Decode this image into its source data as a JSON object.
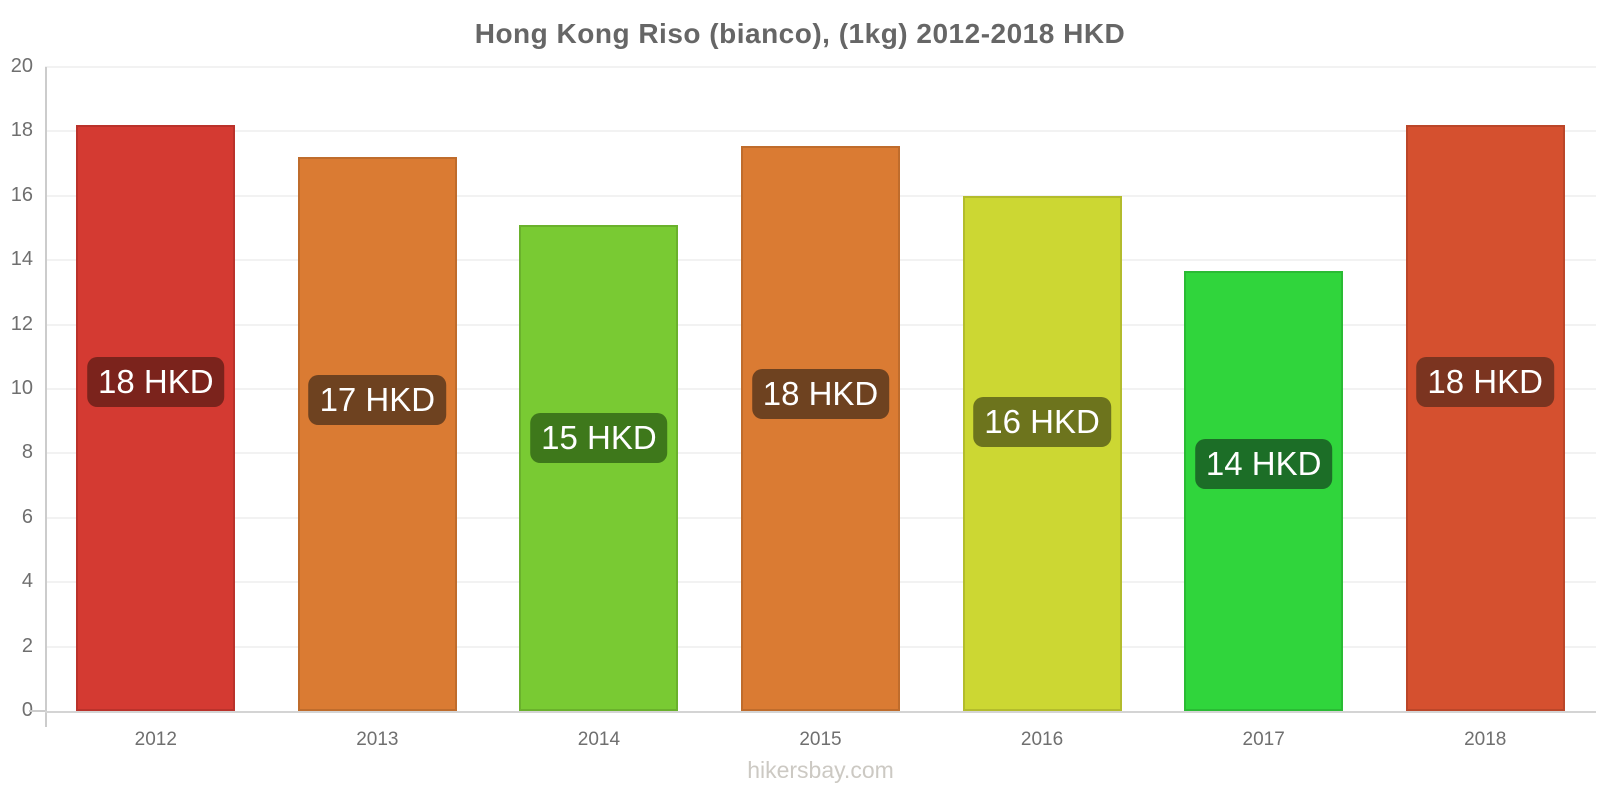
{
  "chart_data": {
    "type": "bar",
    "title": "Hong Kong Riso (bianco), (1kg) 2012-2018 HKD",
    "footer": "hikersbay.com",
    "categories": [
      "2012",
      "2013",
      "2014",
      "2015",
      "2016",
      "2017",
      "2018"
    ],
    "values": [
      18.2,
      17.2,
      15.1,
      17.55,
      16.0,
      13.65,
      18.2
    ],
    "bar_labels": [
      "18 HKD",
      "17 HKD",
      "15 HKD",
      "18 HKD",
      "16 HKD",
      "14 HKD",
      "18 HKD"
    ],
    "bar_colors": [
      "#d43a32",
      "#da7b33",
      "#79ca33",
      "#da7b33",
      "#ccd733",
      "#30d53c",
      "#d5502f"
    ],
    "label_bg_colors": [
      "#7b231c",
      "#6e4220",
      "#3e781b",
      "#6e4220",
      "#6d741d",
      "#1c6e27",
      "#7b3420"
    ],
    "ylim": [
      0,
      20
    ],
    "yticks": [
      0,
      2,
      4,
      6,
      8,
      10,
      12,
      14,
      16,
      18,
      20
    ],
    "xlabel": "",
    "ylabel": "",
    "grid": true,
    "legend": false,
    "colors": {
      "background": "#ffffff",
      "axis": "#cccccc",
      "grid": "#f2f2f2",
      "tick_labels": "#6f6f6f",
      "title": "#666666",
      "footer": "#ccc9c3",
      "label_text": "#ffffff"
    }
  }
}
